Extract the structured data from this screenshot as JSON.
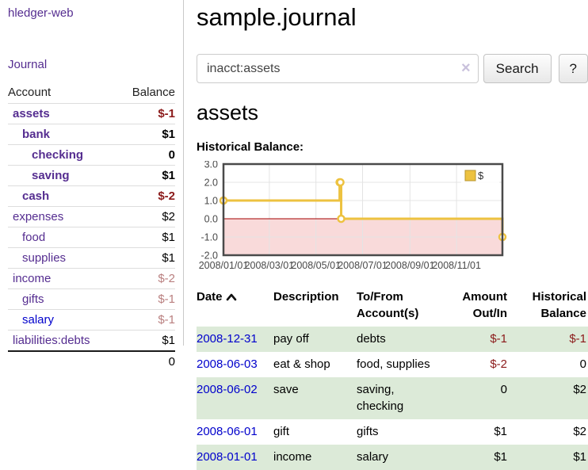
{
  "app": {
    "title": "hledger-web"
  },
  "sidebar": {
    "nav_journal": "Journal",
    "accounts": {
      "headers": {
        "account": "Account",
        "balance": "Balance"
      },
      "rows": [
        {
          "name": "assets",
          "balance": "$-1"
        },
        {
          "name": "bank",
          "balance": "$1"
        },
        {
          "name": "checking",
          "balance": "0"
        },
        {
          "name": "saving",
          "balance": "$1"
        },
        {
          "name": "cash",
          "balance": "$-2"
        },
        {
          "name": "expenses",
          "balance": "$2"
        },
        {
          "name": "food",
          "balance": "$1"
        },
        {
          "name": "supplies",
          "balance": "$1"
        },
        {
          "name": "income",
          "balance": "$-2"
        },
        {
          "name": "gifts",
          "balance": "$-1"
        },
        {
          "name": "salary",
          "balance": "$-1"
        },
        {
          "name": "liabilities:debts",
          "balance": "$1"
        }
      ],
      "total": "0"
    }
  },
  "main": {
    "title": "sample.journal",
    "search": {
      "value": "inacct:assets",
      "clear_icon": "×",
      "search_button": "Search",
      "help_button": "?"
    },
    "account_heading": "assets",
    "chart_title": "Historical Balance:"
  },
  "chart_data": {
    "type": "line",
    "title": "Historical Balance",
    "steps": true,
    "series": [
      {
        "name": "$",
        "color": "#edc240",
        "points": [
          [
            "2008-01-01",
            1
          ],
          [
            "2008-06-01",
            2
          ],
          [
            "2008-06-02",
            2
          ],
          [
            "2008-06-03",
            0
          ],
          [
            "2008-12-31",
            -1
          ]
        ]
      }
    ],
    "x_range": [
      "2008-01-01",
      "2008-12-31"
    ],
    "ylim": [
      -2,
      3
    ],
    "y_ticks": [
      3.0,
      2.0,
      1.0,
      0.0,
      -1.0,
      -2.0
    ],
    "x_ticks": [
      "2008/01/01",
      "2008/03/01",
      "2008/05/01",
      "2008/07/01",
      "2008/09/01",
      "2008/11/01"
    ],
    "legend": {
      "label": "$",
      "position": "top-right"
    },
    "grid": true,
    "grid_color": "#e4e4e4",
    "border_color": "#4a4a4a",
    "tick_color": "#494949",
    "zero_line_color": "#a40000",
    "negative_region_fill": "#f9dada",
    "marker": {
      "shape": "circle",
      "fill": "#ffffff"
    }
  },
  "register": {
    "headers": {
      "date": "Date",
      "description": "Description",
      "accounts": "To/From Account(s)",
      "amount": "Amount Out/In",
      "balance": "Historical Balance"
    },
    "rows": [
      {
        "date": "2008-12-31",
        "description": "pay off",
        "accounts": "debts",
        "amount": "$-1",
        "balance": "$-1"
      },
      {
        "date": "2008-06-03",
        "description": "eat & shop",
        "accounts": "food, supplies",
        "amount": "$-2",
        "balance": "0"
      },
      {
        "date": "2008-06-02",
        "description": "save",
        "accounts": "saving, checking",
        "amount": "0",
        "balance": "$2"
      },
      {
        "date": "2008-06-01",
        "description": "gift",
        "accounts": "gifts",
        "amount": "$1",
        "balance": "$2"
      },
      {
        "date": "2008-01-01",
        "description": "income",
        "accounts": "salary",
        "amount": "$1",
        "balance": "$1"
      }
    ]
  },
  "colors": {
    "link_purple": "#552d90",
    "link_blue": "#0000cc",
    "negative_strong": "#8b1a1a",
    "negative_muted": "#b97f7f",
    "row_highlight_green": "#dcead8",
    "series_gold": "#edc240"
  }
}
